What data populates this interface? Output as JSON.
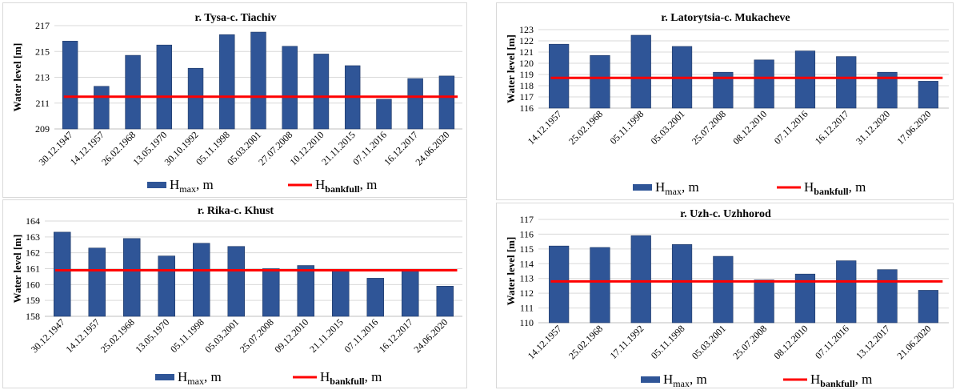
{
  "colors": {
    "bar": "#2F5597",
    "bar_edge": "#1F3864",
    "bankfull": "#FF0000",
    "grid": "#d9d9d9"
  },
  "legend": {
    "hmax_main": "H",
    "hmax_sub": "max",
    "hmax_unit": ", m",
    "bank_main": "H",
    "bank_sub": "bankfull",
    "bank_unit": ",  m"
  },
  "chart_data": [
    {
      "type": "bar",
      "title": "r. Tysa-c. Tiachiv",
      "ylabel": "Water level [m]",
      "ylim": [
        209,
        217
      ],
      "yticks": [
        209,
        211,
        213,
        215,
        217
      ],
      "grid": true,
      "categories": [
        "30.12.1947",
        "14.12.1957",
        "26.02.1968",
        "13.05.1970",
        "30.10.1992",
        "05.11.1998",
        "05.03.2001",
        "27.07.2008",
        "10.12.2010",
        "21.11.2015",
        "07.11.2016",
        "16.12.2017",
        "24.06.2020"
      ],
      "series": [
        {
          "name": "Hmax, m",
          "values": [
            215.8,
            212.3,
            214.7,
            215.5,
            213.7,
            216.3,
            216.5,
            215.4,
            214.8,
            213.9,
            211.3,
            212.9,
            213.1
          ]
        },
        {
          "name": "Hbankfull, m",
          "type": "line",
          "value": 211.5
        }
      ]
    },
    {
      "type": "bar",
      "title": "r. Latorytsia-c. Mukacheve",
      "ylabel": "Water level [m]",
      "ylim": [
        116,
        123
      ],
      "yticks": [
        116,
        117,
        118,
        119,
        120,
        121,
        122,
        123
      ],
      "grid": true,
      "categories": [
        "14.12.1957",
        "25.02.1968",
        "05.11.1998",
        "05.03.2001",
        "25.07.2008",
        "08.12.2010",
        "07.11.2016",
        "16.12.2017",
        "31.12.2020",
        "17.06.2020"
      ],
      "series": [
        {
          "name": "Hmax, m",
          "values": [
            121.7,
            120.7,
            122.5,
            121.5,
            119.2,
            120.3,
            121.1,
            120.6,
            119.2,
            118.4
          ]
        },
        {
          "name": "Hbankfull, m",
          "type": "line",
          "value": 118.7
        }
      ]
    },
    {
      "type": "bar",
      "title": "r. Rika-c. Khust",
      "ylabel": "Water level [m]",
      "ylim": [
        158,
        164
      ],
      "yticks": [
        158,
        159,
        160,
        161,
        162,
        163,
        164
      ],
      "grid": true,
      "categories": [
        "30.12.1947",
        "14.12.1957",
        "25.02.1968",
        "13.05.1970",
        "05.11.1998",
        "05.03.2001",
        "25.07.2008",
        "09.12.2010",
        "21.11.2015",
        "07.11.2016",
        "16.12.2017",
        "24.06.2020"
      ],
      "series": [
        {
          "name": "Hmax, m",
          "values": [
            163.3,
            162.3,
            162.9,
            161.8,
            162.6,
            162.4,
            161.0,
            161.2,
            160.9,
            160.4,
            160.9,
            159.9
          ]
        },
        {
          "name": "Hbankfull, m",
          "type": "line",
          "value": 160.9
        }
      ]
    },
    {
      "type": "bar",
      "title": "r. Uzh-c. Uzhhorod",
      "ylabel": "Water level [m]",
      "ylim": [
        110,
        117
      ],
      "yticks": [
        110,
        111,
        112,
        113,
        114,
        115,
        116,
        117
      ],
      "grid": true,
      "categories": [
        "14.12.1957",
        "25.02.1968",
        "17.11.1992",
        "05.11.1998",
        "05.03.2001",
        "25.07.2008",
        "08.12.2010",
        "07.11.2016",
        "13.12.2017",
        "21.06.2020"
      ],
      "series": [
        {
          "name": "Hmax, m",
          "values": [
            115.2,
            115.1,
            115.9,
            115.3,
            114.5,
            112.9,
            113.3,
            114.2,
            113.6,
            112.2
          ]
        },
        {
          "name": "Hbankfull, m",
          "type": "line",
          "value": 112.8
        }
      ]
    }
  ]
}
